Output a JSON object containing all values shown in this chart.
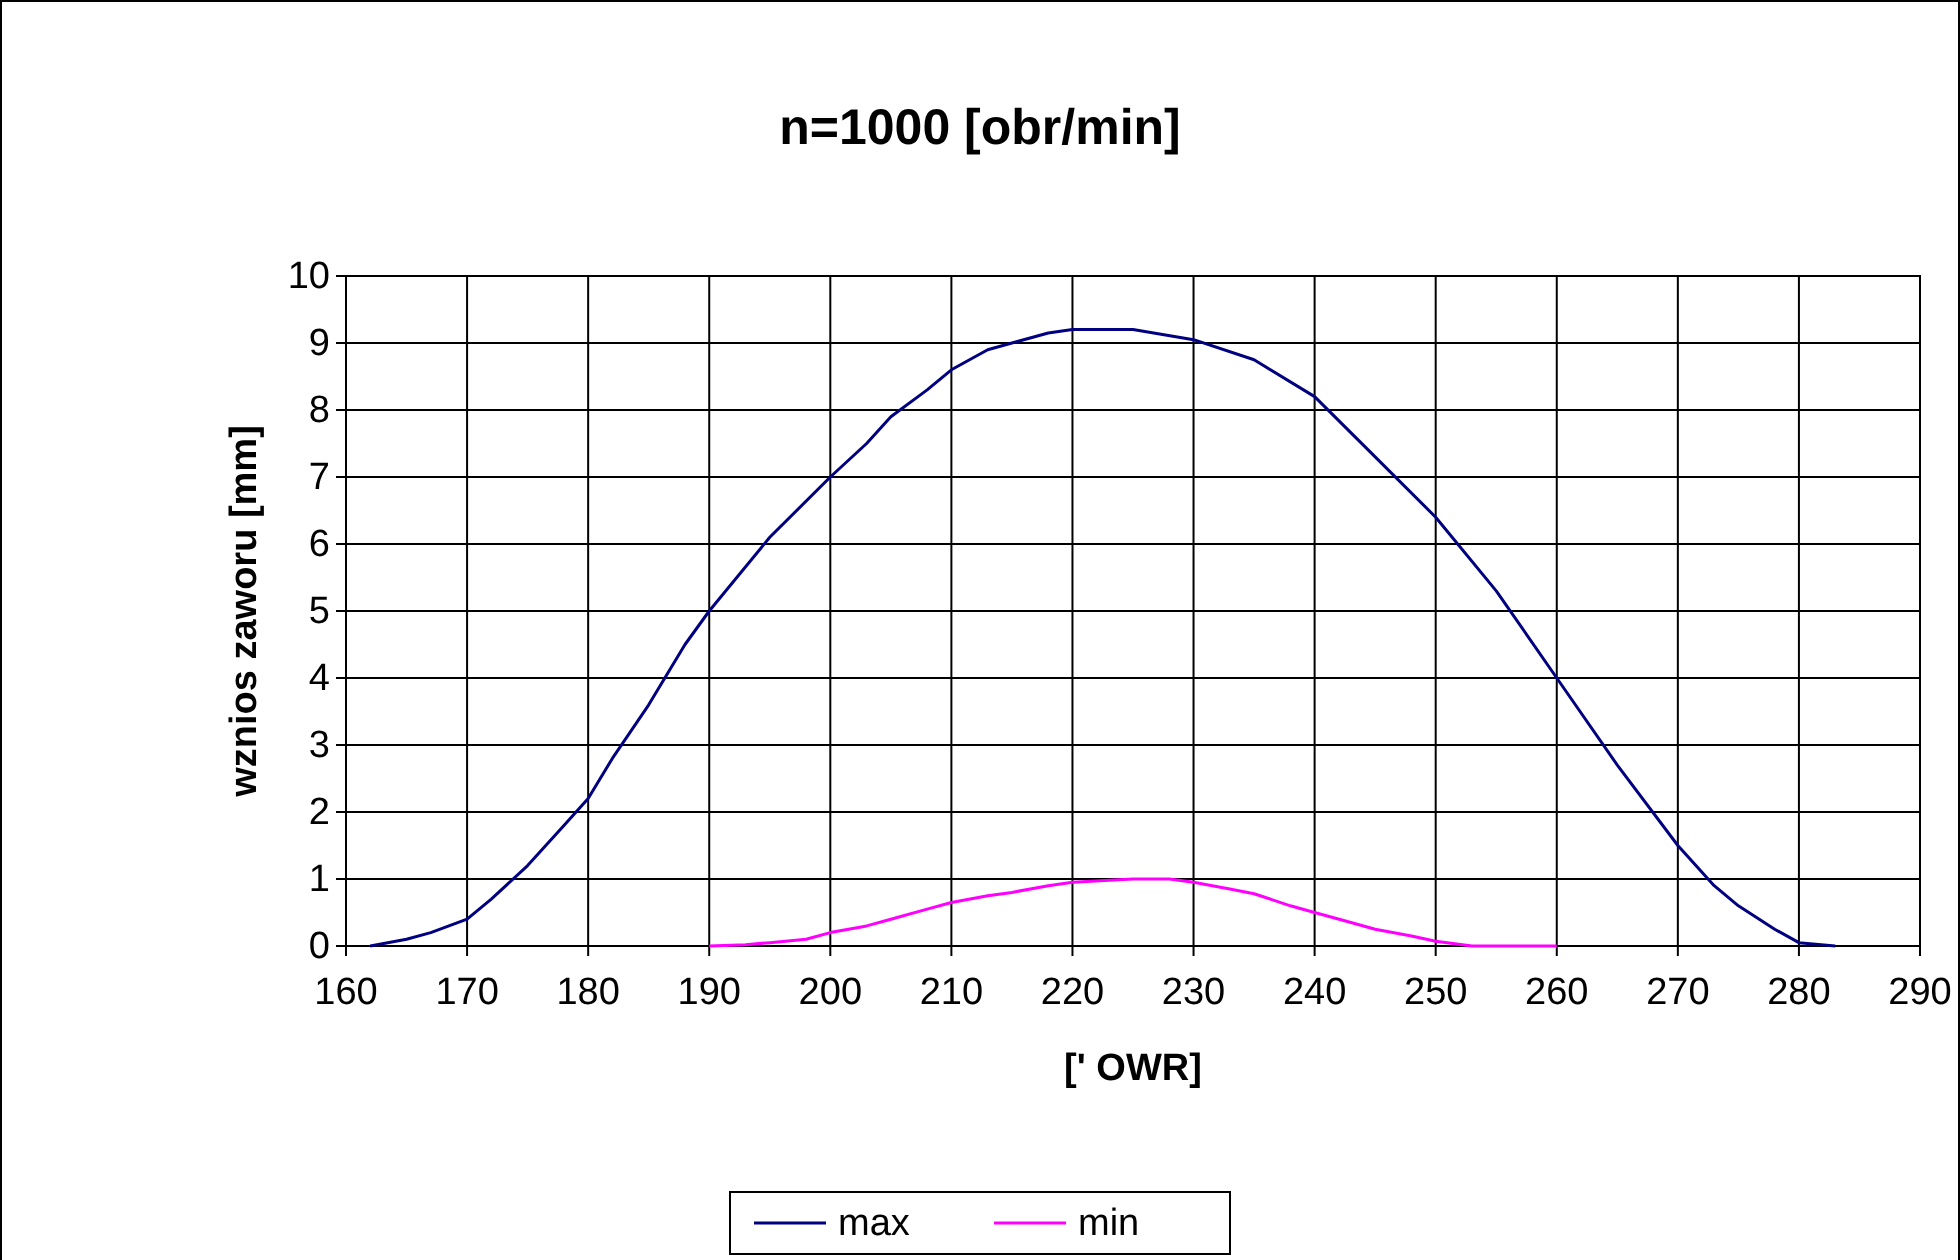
{
  "chart_data": {
    "type": "line",
    "title": "n=1000 [obr/min]",
    "xlabel": "[' OWR]",
    "ylabel": "wznios zaworu [mm]",
    "xlim": [
      160,
      290
    ],
    "xticks": [
      160,
      170,
      180,
      190,
      200,
      210,
      220,
      230,
      240,
      250,
      260,
      270,
      280,
      290
    ],
    "ylim": [
      0,
      10
    ],
    "yticks": [
      0,
      1,
      2,
      3,
      4,
      5,
      6,
      7,
      8,
      9,
      10
    ],
    "grid": true,
    "legend": "bottom",
    "marker": "none",
    "line_style": "solid",
    "series": [
      {
        "name": "max",
        "color": "#000080",
        "x": [
          162,
          165,
          167,
          170,
          172,
          175,
          178,
          180,
          182,
          185,
          188,
          190,
          195,
          200,
          203,
          205,
          208,
          210,
          213,
          215,
          218,
          220,
          225,
          230,
          235,
          240,
          245,
          250,
          255,
          260,
          265,
          270,
          273,
          275,
          278,
          280,
          283
        ],
        "values": [
          0,
          0.1,
          0.2,
          0.4,
          0.7,
          1.2,
          1.8,
          2.2,
          2.8,
          3.6,
          4.5,
          5.0,
          6.1,
          7.0,
          7.5,
          7.9,
          8.3,
          8.6,
          8.9,
          9.0,
          9.15,
          9.2,
          9.2,
          9.05,
          8.75,
          8.2,
          7.3,
          6.4,
          5.3,
          4.0,
          2.7,
          1.5,
          0.9,
          0.6,
          0.25,
          0.05,
          0
        ]
      },
      {
        "name": "min",
        "color": "#ff00ff",
        "x": [
          190,
          193,
          195,
          198,
          200,
          203,
          205,
          208,
          210,
          213,
          215,
          218,
          220,
          225,
          228,
          230,
          233,
          235,
          238,
          240,
          243,
          245,
          248,
          250,
          253,
          255,
          260
        ],
        "values": [
          0,
          0.02,
          0.05,
          0.1,
          0.2,
          0.3,
          0.4,
          0.55,
          0.65,
          0.75,
          0.8,
          0.9,
          0.95,
          1.0,
          1.0,
          0.95,
          0.85,
          0.78,
          0.6,
          0.5,
          0.35,
          0.25,
          0.15,
          0.07,
          0,
          0,
          0
        ]
      }
    ]
  }
}
